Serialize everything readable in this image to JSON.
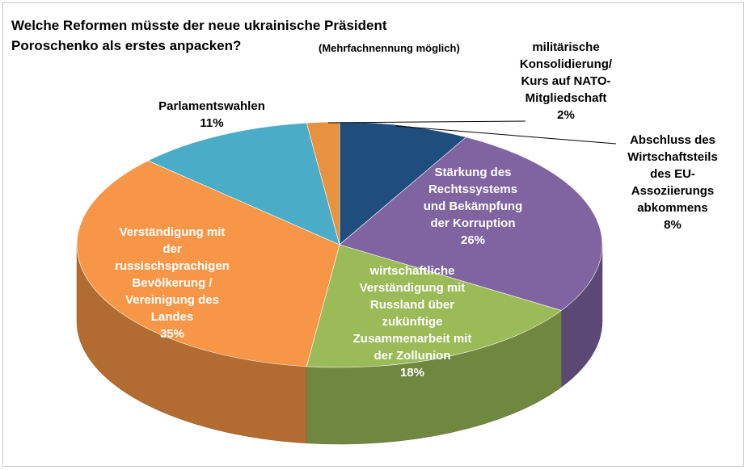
{
  "chart_data": {
    "type": "pie3d",
    "title": "Welche Reformen müsste der neue ukrainische Präsident\nPoroschenko als erstes anpacken?",
    "subtitle": "(Mehrfachnennung möglich)",
    "categories": [
      "Abschluss des\nWirtschaftsteils\ndes EU-\nAssoziierungs\nabkommens",
      "Stärkung des\nRechtssystems\nund Bekämpfung\nder Korruption",
      "wirtschaftliche\nVerständigung mit\nRussland über\nzukünftige\nZusammenarbeit mit\nder Zollunion",
      "Verständigung mit\nder\nrussischsprachigen\nBevölkerung /\nVereinigung des\nLandes",
      "Parlamentswahlen",
      "militärische\nKonsolidierung/\nKurs auf NATO-\nMitgliedschaft"
    ],
    "values": [
      8,
      26,
      18,
      35,
      11,
      2
    ],
    "value_labels": [
      "8%",
      "26%",
      "18%",
      "35%",
      "11%",
      "2%"
    ],
    "colors": [
      "#1f4e7e",
      "#8064a2",
      "#9bbb59",
      "#f79646",
      "#4aacc6",
      "#e8913f"
    ]
  }
}
